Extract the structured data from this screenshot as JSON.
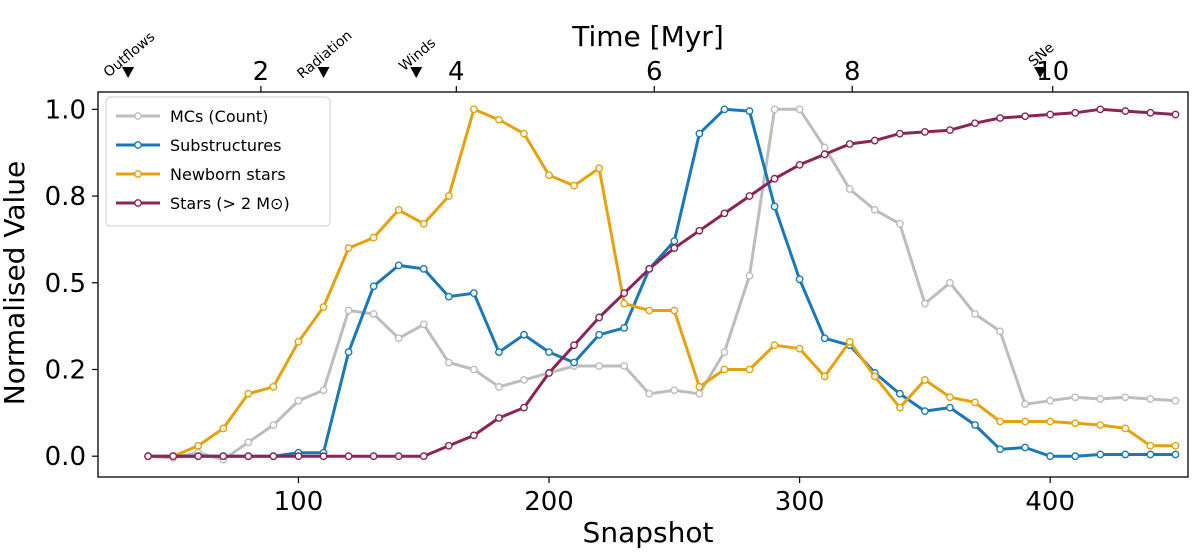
{
  "chart_data": {
    "type": "line",
    "xlabel": "Snapshot",
    "ylabel": "Normalised Value",
    "top_xlabel": "Time [Myr]",
    "xlim": [
      20,
      455
    ],
    "ylim": [
      -0.06,
      1.05
    ],
    "x_ticks": [
      100,
      200,
      300,
      400
    ],
    "x_tick_labels": [
      "100",
      "200",
      "300",
      "400"
    ],
    "y_ticks": [
      0.0,
      0.25,
      0.5,
      0.75,
      1.0
    ],
    "y_tick_labels": [
      "0.0",
      "0.2",
      "0.5",
      "0.8",
      "1.0"
    ],
    "top_ticks": [
      {
        "snapshot": 85,
        "label": "2"
      },
      {
        "snapshot": 163,
        "label": "4"
      },
      {
        "snapshot": 242,
        "label": "6"
      },
      {
        "snapshot": 321,
        "label": "8"
      },
      {
        "snapshot": 401,
        "label": "10"
      }
    ],
    "events": [
      {
        "label": "Outflows",
        "snapshot": 32
      },
      {
        "label": "Radiation",
        "snapshot": 110
      },
      {
        "label": "Winds",
        "snapshot": 147
      },
      {
        "label": "SNe",
        "snapshot": 396
      }
    ],
    "legend_position": "top-left",
    "x": [
      40,
      50,
      60,
      70,
      80,
      90,
      100,
      110,
      120,
      130,
      140,
      150,
      160,
      170,
      180,
      190,
      200,
      210,
      220,
      230,
      240,
      250,
      260,
      270,
      280,
      290,
      300,
      310,
      320,
      330,
      340,
      350,
      360,
      370,
      380,
      390,
      400,
      410,
      420,
      430,
      440,
      450
    ],
    "series": [
      {
        "name": "MCs (Count)",
        "color": "#bdbdbd",
        "values": [
          0.0,
          -0.005,
          0.01,
          -0.01,
          0.04,
          0.09,
          0.16,
          0.19,
          0.42,
          0.41,
          0.34,
          0.38,
          0.27,
          0.25,
          0.2,
          0.22,
          0.24,
          0.26,
          0.26,
          0.26,
          0.18,
          0.19,
          0.18,
          0.3,
          0.52,
          1.0,
          1.0,
          0.89,
          0.77,
          0.71,
          0.67,
          0.44,
          0.5,
          0.41,
          0.36,
          0.15,
          0.16,
          0.17,
          0.165,
          0.17,
          0.165,
          0.16
        ]
      },
      {
        "name": "Substructures",
        "color": "#1a78b8",
        "values": [
          0.0,
          0.0,
          0.0,
          0.0,
          0.0,
          0.0,
          0.01,
          0.01,
          0.3,
          0.49,
          0.55,
          0.54,
          0.46,
          0.47,
          0.3,
          0.35,
          0.3,
          0.27,
          0.35,
          0.37,
          0.54,
          0.62,
          0.93,
          1.0,
          0.995,
          0.72,
          0.51,
          0.34,
          0.32,
          0.24,
          0.18,
          0.13,
          0.14,
          0.09,
          0.02,
          0.025,
          0.0,
          0.0,
          0.005,
          0.005,
          0.005,
          0.005
        ]
      },
      {
        "name": "Newborn stars",
        "color": "#e5a20f",
        "values": [
          0.0,
          0.0,
          0.03,
          0.08,
          0.18,
          0.2,
          0.33,
          0.43,
          0.6,
          0.63,
          0.71,
          0.67,
          0.75,
          1.0,
          0.97,
          0.93,
          0.81,
          0.78,
          0.83,
          0.44,
          0.42,
          0.42,
          0.2,
          0.25,
          0.25,
          0.32,
          0.31,
          0.23,
          0.33,
          0.23,
          0.14,
          0.22,
          0.17,
          0.155,
          0.1,
          0.1,
          0.1,
          0.095,
          0.09,
          0.08,
          0.03,
          0.03
        ]
      },
      {
        "name": "Stars (> 2 M⊙)",
        "color": "#8b2457",
        "values": [
          0.0,
          0.0,
          0.0,
          0.0,
          0.0,
          0.0,
          0.0,
          0.0,
          0.0,
          0.0,
          0.0,
          0.0,
          0.03,
          0.06,
          0.11,
          0.14,
          0.24,
          0.32,
          0.4,
          0.47,
          0.54,
          0.6,
          0.65,
          0.7,
          0.75,
          0.8,
          0.84,
          0.87,
          0.9,
          0.91,
          0.93,
          0.935,
          0.94,
          0.96,
          0.975,
          0.98,
          0.985,
          0.99,
          1.0,
          0.995,
          0.99,
          0.985
        ]
      }
    ]
  }
}
